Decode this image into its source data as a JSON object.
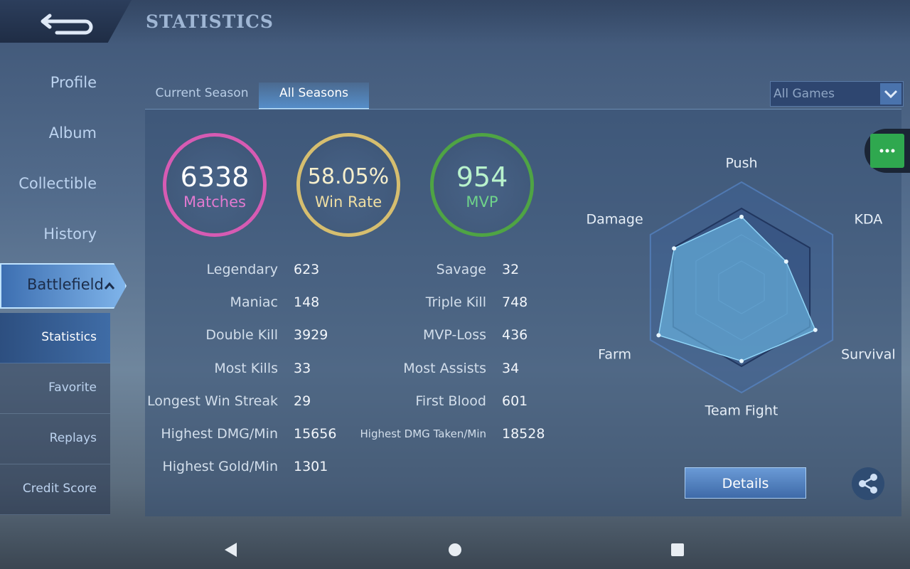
{
  "header": {
    "title": "STATISTICS"
  },
  "sidebar": {
    "items": [
      "Profile",
      "Album",
      "Collectible",
      "History",
      "Battlefield"
    ],
    "subitems": [
      "Statistics",
      "Favorite",
      "Replays",
      "Credit Score"
    ]
  },
  "tabs": [
    "Current Season",
    "All Seasons"
  ],
  "filter": "All Games",
  "summary": [
    {
      "value": "6338",
      "label": "Matches"
    },
    {
      "value": "58.05%",
      "label": "Win Rate"
    },
    {
      "value": "954",
      "label": "MVP"
    }
  ],
  "stats": {
    "left": [
      [
        "Legendary",
        "623"
      ],
      [
        "Maniac",
        "148"
      ],
      [
        "Double Kill",
        "3929"
      ],
      [
        "Most Kills",
        "33"
      ],
      [
        "Longest Win Streak",
        "29"
      ],
      [
        "Highest DMG/Min",
        "15656"
      ],
      [
        "Highest Gold/Min",
        "1301"
      ]
    ],
    "right": [
      [
        "Savage",
        "32"
      ],
      [
        "Triple Kill",
        "748"
      ],
      [
        "MVP-Loss",
        "436"
      ],
      [
        "Most Assists",
        "34"
      ],
      [
        "First Blood",
        "601"
      ],
      [
        "Highest DMG Taken/Min",
        "18528"
      ]
    ]
  },
  "radar": {
    "axes": [
      "Push",
      "KDA",
      "Survival",
      "Team Fight",
      "Farm",
      "Damage"
    ],
    "values": [
      67,
      49,
      81,
      70,
      91,
      74
    ],
    "rlim": [
      0,
      100
    ]
  },
  "details_button": "Details"
}
